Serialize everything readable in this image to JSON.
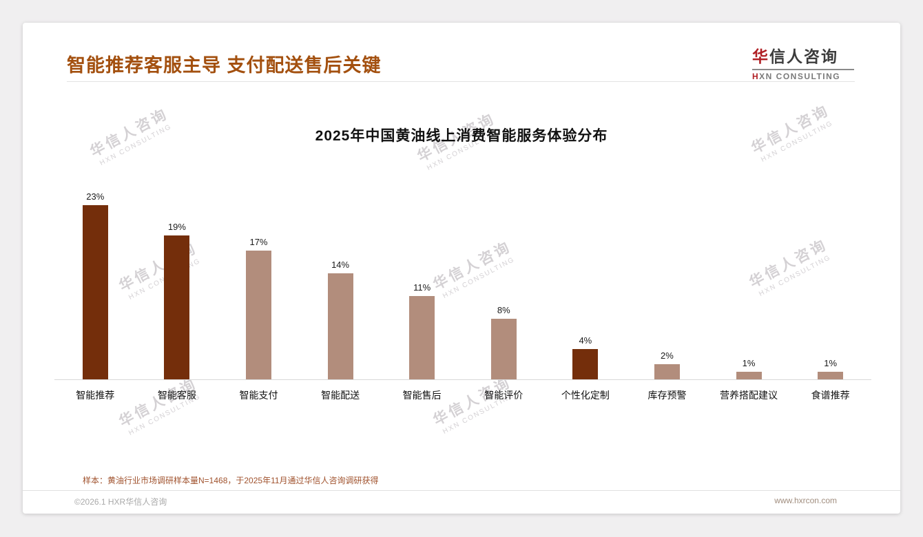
{
  "page": {
    "background": "#f0eff0",
    "card_background": "#ffffff"
  },
  "header": {
    "title": "智能推荐客服主导 支付配送售后关键",
    "title_color": "#a3500f"
  },
  "logo": {
    "cn_accent": "华",
    "cn_rest": "信人咨询",
    "en_accent": "H",
    "en_rest": "XN CONSULTING",
    "accent_color": "#b01f24"
  },
  "watermark": {
    "cn": "华信人咨询",
    "en": "HXN CONSULTING"
  },
  "chart_data": {
    "type": "bar",
    "title": "2025年中国黄油线上消费智能服务体验分布",
    "categories": [
      "智能推荐",
      "智能客服",
      "智能支付",
      "智能配送",
      "智能售后",
      "智能评价",
      "个性化定制",
      "库存预警",
      "营养搭配建议",
      "食谱推荐"
    ],
    "values": [
      23,
      19,
      17,
      14,
      11,
      8,
      4,
      2,
      1,
      1
    ],
    "value_labels": [
      "23%",
      "19%",
      "17%",
      "14%",
      "11%",
      "8%",
      "4%",
      "2%",
      "1%",
      "1%"
    ],
    "bar_colors": [
      "#742e0b",
      "#742e0b",
      "#b28d7c",
      "#b28d7c",
      "#b28d7c",
      "#b28d7c",
      "#742e0b",
      "#b28d7c",
      "#b28d7c",
      "#b28d7c"
    ],
    "dark_bar_color": "#742e0b",
    "light_bar_color": "#b28d7c",
    "xlabel": "",
    "ylabel": "",
    "ylim": [
      0,
      25
    ],
    "grid": false,
    "legend": false
  },
  "footnote": {
    "text": "样本：黄油行业市场调研样本量N=1468，于2025年11月通过华信人咨询调研获得",
    "color": "#a0522d"
  },
  "footer": {
    "copyright": "©2026.1 HXR华信人咨询",
    "website": "www.hxrcon.com"
  }
}
